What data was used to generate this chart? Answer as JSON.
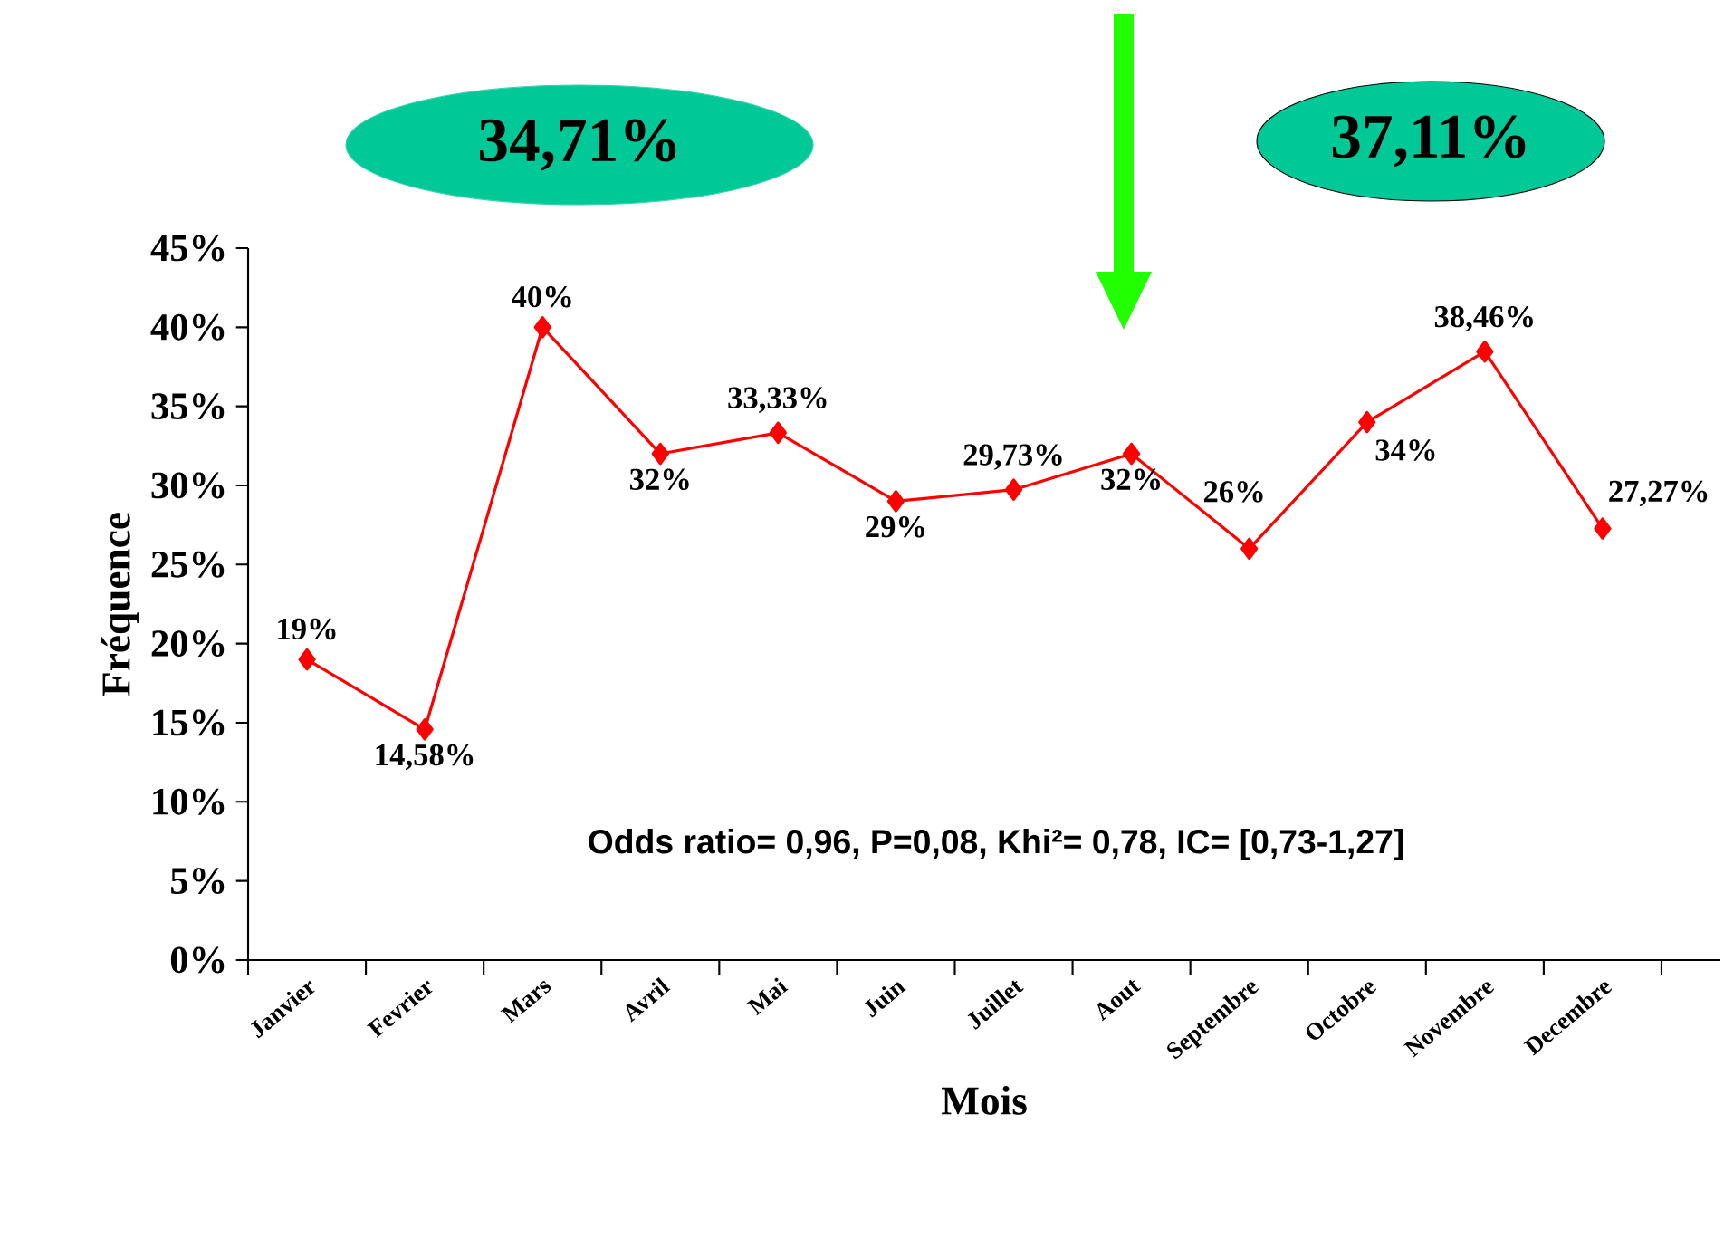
{
  "chart_data": {
    "type": "line",
    "xlabel": "Mois",
    "ylabel": "Fréquence",
    "categories": [
      "Janvier",
      "Fevrier",
      "Mars",
      "Avril",
      "Mai",
      "Juin",
      "Juillet",
      "Aout",
      "Septembre",
      "Octobre",
      "Novembre",
      "Decembre"
    ],
    "series": [
      {
        "color": "#ff0000",
        "values": [
          19,
          14.58,
          40,
          32,
          33.33,
          29,
          29.73,
          32,
          26,
          34,
          38.46,
          27.27
        ]
      }
    ],
    "value_labels": [
      "19%",
      "14,58%",
      "40%",
      "32%",
      "33,33%",
      "29%",
      "29,73%",
      "32%",
      "26%",
      "34%",
      "38,46%",
      "27,27%"
    ],
    "ylim": [
      0,
      45
    ],
    "yticks": [
      {
        "value": 0,
        "label": "0%"
      },
      {
        "value": 5,
        "label": "5%"
      },
      {
        "value": 10,
        "label": "10%"
      },
      {
        "value": 15,
        "label": "15%"
      },
      {
        "value": 20,
        "label": "20%"
      },
      {
        "value": 25,
        "label": "25%"
      },
      {
        "value": 30,
        "label": "30%"
      },
      {
        "value": 35,
        "label": "35%"
      },
      {
        "value": 40,
        "label": "40%"
      },
      {
        "value": 45,
        "label": "45%"
      }
    ],
    "marker": "diamond",
    "line_style": "solid",
    "annotations": [
      "34,71%",
      "37,11%",
      "Odds ratio= 0,96,  P=0,08,  Khi²= 0,78,  IC= [0,73-1,27]"
    ]
  }
}
